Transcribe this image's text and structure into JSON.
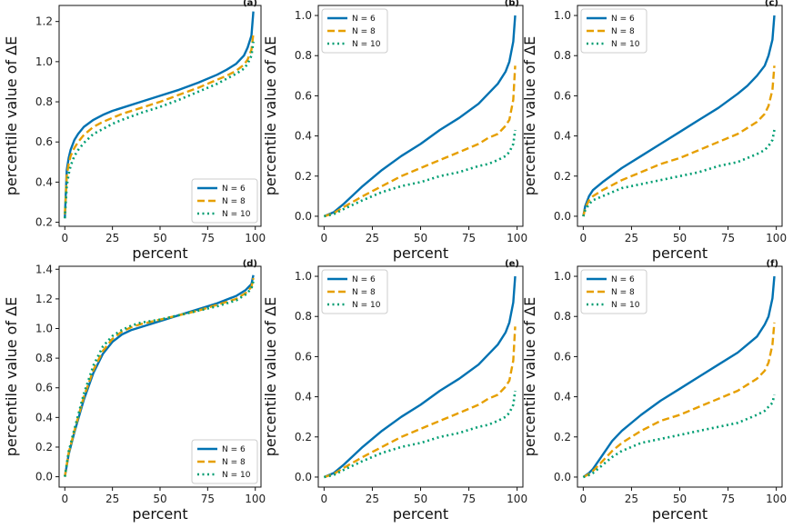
{
  "colors": {
    "N6": "#0072B2",
    "N8": "#E69F00",
    "N10": "#009E73"
  },
  "chart_data": [
    {
      "type": "line",
      "panel_label": "(a)",
      "xlabel": "percent",
      "ylabel": "percentile value of ΔE",
      "xlim": [
        -3,
        103
      ],
      "ylim": [
        0.18,
        1.28
      ],
      "xticks": [
        "0",
        "25",
        "50",
        "75",
        "100"
      ],
      "yticks": [
        "0.2",
        "0.4",
        "0.6",
        "0.8",
        "1.0",
        "1.2"
      ],
      "legend_position": "bottom-right",
      "series": [
        {
          "name": "N = 6",
          "x": [
            0,
            1,
            2,
            3,
            5,
            7,
            10,
            15,
            20,
            25,
            30,
            40,
            50,
            60,
            70,
            80,
            85,
            90,
            94,
            96,
            98,
            99
          ],
          "y": [
            0.22,
            0.46,
            0.52,
            0.56,
            0.61,
            0.64,
            0.675,
            0.71,
            0.735,
            0.755,
            0.77,
            0.8,
            0.83,
            0.86,
            0.895,
            0.935,
            0.96,
            0.99,
            1.03,
            1.07,
            1.13,
            1.25
          ]
        },
        {
          "name": "N = 8",
          "x": [
            0,
            1,
            2,
            3,
            5,
            7,
            10,
            15,
            20,
            25,
            30,
            40,
            50,
            60,
            70,
            80,
            85,
            90,
            94,
            96,
            98,
            99
          ],
          "y": [
            0.24,
            0.43,
            0.49,
            0.53,
            0.57,
            0.6,
            0.635,
            0.675,
            0.7,
            0.72,
            0.74,
            0.77,
            0.8,
            0.835,
            0.87,
            0.91,
            0.93,
            0.955,
            0.985,
            1.01,
            1.06,
            1.14
          ]
        },
        {
          "name": "N = 10",
          "x": [
            0,
            1,
            2,
            3,
            5,
            7,
            10,
            15,
            20,
            25,
            30,
            40,
            50,
            60,
            70,
            80,
            85,
            90,
            94,
            96,
            98,
            99
          ],
          "y": [
            0.22,
            0.38,
            0.44,
            0.48,
            0.53,
            0.56,
            0.595,
            0.64,
            0.665,
            0.69,
            0.71,
            0.745,
            0.775,
            0.81,
            0.85,
            0.89,
            0.915,
            0.94,
            0.965,
            0.99,
            1.03,
            1.1
          ]
        }
      ]
    },
    {
      "type": "line",
      "panel_label": "(b)",
      "xlabel": "percent",
      "ylabel": "percentile value of ΔE",
      "xlim": [
        -3,
        103
      ],
      "ylim": [
        -0.05,
        1.05
      ],
      "xticks": [
        "0",
        "25",
        "50",
        "75",
        "100"
      ],
      "yticks": [
        "0.0",
        "0.2",
        "0.4",
        "0.6",
        "0.8",
        "1.0"
      ],
      "legend_position": "top-left",
      "series": [
        {
          "name": "N = 6",
          "x": [
            0,
            5,
            10,
            20,
            30,
            40,
            50,
            60,
            70,
            80,
            85,
            90,
            94,
            96,
            98,
            99
          ],
          "y": [
            0.0,
            0.02,
            0.06,
            0.15,
            0.23,
            0.3,
            0.36,
            0.43,
            0.49,
            0.56,
            0.61,
            0.66,
            0.72,
            0.77,
            0.87,
            1.0
          ]
        },
        {
          "name": "N = 8",
          "x": [
            0,
            5,
            10,
            20,
            30,
            40,
            50,
            60,
            70,
            80,
            85,
            90,
            94,
            96,
            98,
            99
          ],
          "y": [
            0.0,
            0.015,
            0.045,
            0.1,
            0.15,
            0.2,
            0.24,
            0.28,
            0.32,
            0.36,
            0.39,
            0.41,
            0.45,
            0.48,
            0.58,
            0.75
          ]
        },
        {
          "name": "N = 10",
          "x": [
            0,
            5,
            10,
            20,
            30,
            40,
            50,
            60,
            70,
            80,
            85,
            90,
            94,
            96,
            98,
            99
          ],
          "y": [
            0.0,
            0.01,
            0.035,
            0.08,
            0.12,
            0.15,
            0.17,
            0.2,
            0.22,
            0.25,
            0.26,
            0.28,
            0.3,
            0.32,
            0.36,
            0.43
          ]
        }
      ]
    },
    {
      "type": "line",
      "panel_label": "(c)",
      "xlabel": "percent",
      "ylabel": "percentile value of ΔE",
      "xlim": [
        -3,
        103
      ],
      "ylim": [
        -0.05,
        1.05
      ],
      "xticks": [
        "0",
        "25",
        "50",
        "75",
        "100"
      ],
      "yticks": [
        "0.0",
        "0.2",
        "0.4",
        "0.6",
        "0.8",
        "1.0"
      ],
      "legend_position": "top-left",
      "series": [
        {
          "name": "N = 6",
          "x": [
            0,
            1,
            3,
            5,
            10,
            20,
            30,
            40,
            50,
            60,
            70,
            80,
            85,
            90,
            94,
            96,
            98,
            99
          ],
          "y": [
            0.0,
            0.05,
            0.1,
            0.13,
            0.17,
            0.24,
            0.3,
            0.36,
            0.42,
            0.48,
            0.54,
            0.61,
            0.65,
            0.7,
            0.75,
            0.8,
            0.88,
            1.0
          ]
        },
        {
          "name": "N = 8",
          "x": [
            0,
            1,
            3,
            5,
            10,
            20,
            30,
            40,
            50,
            60,
            70,
            80,
            85,
            90,
            94,
            96,
            98,
            99
          ],
          "y": [
            0.0,
            0.04,
            0.08,
            0.1,
            0.13,
            0.18,
            0.22,
            0.26,
            0.29,
            0.33,
            0.37,
            0.41,
            0.44,
            0.47,
            0.51,
            0.55,
            0.63,
            0.75
          ]
        },
        {
          "name": "N = 10",
          "x": [
            0,
            1,
            3,
            5,
            10,
            20,
            30,
            40,
            50,
            60,
            70,
            80,
            85,
            90,
            94,
            96,
            98,
            99
          ],
          "y": [
            0.0,
            0.03,
            0.06,
            0.08,
            0.1,
            0.14,
            0.16,
            0.18,
            0.2,
            0.22,
            0.25,
            0.27,
            0.29,
            0.31,
            0.33,
            0.35,
            0.38,
            0.43
          ]
        }
      ]
    },
    {
      "type": "line",
      "panel_label": "(d)",
      "xlabel": "percent",
      "ylabel": "percentile value of ΔE",
      "xlim": [
        -3,
        103
      ],
      "ylim": [
        -0.07,
        1.42
      ],
      "xticks": [
        "0",
        "25",
        "50",
        "75",
        "100"
      ],
      "yticks": [
        "0.0",
        "0.2",
        "0.4",
        "0.6",
        "0.8",
        "1.0",
        "1.2",
        "1.4"
      ],
      "legend_position": "bottom-right",
      "series": [
        {
          "name": "N = 6",
          "x": [
            0,
            2,
            5,
            10,
            15,
            20,
            25,
            30,
            35,
            40,
            50,
            60,
            70,
            80,
            90,
            95,
            98,
            99
          ],
          "y": [
            0.0,
            0.15,
            0.3,
            0.52,
            0.7,
            0.83,
            0.91,
            0.96,
            0.99,
            1.01,
            1.05,
            1.09,
            1.13,
            1.17,
            1.22,
            1.26,
            1.3,
            1.36
          ]
        },
        {
          "name": "N = 8",
          "x": [
            0,
            2,
            5,
            10,
            15,
            20,
            25,
            30,
            35,
            40,
            50,
            60,
            70,
            80,
            90,
            95,
            98,
            99
          ],
          "y": [
            0.0,
            0.16,
            0.31,
            0.54,
            0.72,
            0.85,
            0.93,
            0.98,
            1.01,
            1.03,
            1.06,
            1.09,
            1.12,
            1.16,
            1.2,
            1.24,
            1.28,
            1.34
          ]
        },
        {
          "name": "N = 10",
          "x": [
            0,
            2,
            5,
            10,
            15,
            20,
            25,
            30,
            35,
            40,
            50,
            60,
            70,
            80,
            90,
            95,
            98,
            99
          ],
          "y": [
            0.0,
            0.17,
            0.32,
            0.56,
            0.75,
            0.88,
            0.95,
            0.99,
            1.02,
            1.04,
            1.06,
            1.09,
            1.12,
            1.15,
            1.19,
            1.23,
            1.27,
            1.32
          ]
        }
      ]
    },
    {
      "type": "line",
      "panel_label": "(e)",
      "xlabel": "percent",
      "ylabel": "percentile value of ΔE",
      "xlim": [
        -3,
        103
      ],
      "ylim": [
        -0.05,
        1.05
      ],
      "xticks": [
        "0",
        "25",
        "50",
        "75",
        "100"
      ],
      "yticks": [
        "0.0",
        "0.2",
        "0.4",
        "0.6",
        "0.8",
        "1.0"
      ],
      "legend_position": "top-left",
      "series": [
        {
          "name": "N = 6",
          "x": [
            0,
            5,
            10,
            20,
            30,
            40,
            50,
            60,
            70,
            80,
            85,
            90,
            94,
            96,
            98,
            99
          ],
          "y": [
            0.0,
            0.02,
            0.06,
            0.15,
            0.23,
            0.3,
            0.36,
            0.43,
            0.49,
            0.56,
            0.61,
            0.66,
            0.72,
            0.77,
            0.87,
            1.0
          ]
        },
        {
          "name": "N = 8",
          "x": [
            0,
            5,
            10,
            20,
            30,
            40,
            50,
            60,
            70,
            80,
            85,
            90,
            94,
            96,
            98,
            99
          ],
          "y": [
            0.0,
            0.015,
            0.045,
            0.1,
            0.15,
            0.2,
            0.24,
            0.28,
            0.32,
            0.36,
            0.39,
            0.41,
            0.45,
            0.48,
            0.58,
            0.75
          ]
        },
        {
          "name": "N = 10",
          "x": [
            0,
            5,
            10,
            20,
            30,
            40,
            50,
            60,
            70,
            80,
            85,
            90,
            94,
            96,
            98,
            99
          ],
          "y": [
            0.0,
            0.01,
            0.035,
            0.08,
            0.12,
            0.15,
            0.17,
            0.2,
            0.22,
            0.25,
            0.26,
            0.28,
            0.3,
            0.32,
            0.36,
            0.43
          ]
        }
      ]
    },
    {
      "type": "line",
      "panel_label": "(f)",
      "xlabel": "percent",
      "ylabel": "percentile value of ΔE",
      "xlim": [
        -3,
        103
      ],
      "ylim": [
        -0.05,
        1.05
      ],
      "xticks": [
        "0",
        "25",
        "50",
        "75",
        "100"
      ],
      "yticks": [
        "0.0",
        "0.2",
        "0.4",
        "0.6",
        "0.8",
        "1.0"
      ],
      "legend_position": "top-left",
      "series": [
        {
          "name": "N = 6",
          "x": [
            0,
            3,
            5,
            10,
            15,
            20,
            30,
            40,
            50,
            60,
            70,
            80,
            85,
            90,
            94,
            96,
            98,
            99
          ],
          "y": [
            0.0,
            0.02,
            0.04,
            0.11,
            0.18,
            0.23,
            0.31,
            0.38,
            0.44,
            0.5,
            0.56,
            0.62,
            0.66,
            0.7,
            0.76,
            0.8,
            0.89,
            1.0
          ]
        },
        {
          "name": "N = 8",
          "x": [
            0,
            3,
            5,
            10,
            15,
            20,
            30,
            40,
            50,
            60,
            70,
            80,
            85,
            90,
            94,
            96,
            98,
            99
          ],
          "y": [
            0.0,
            0.015,
            0.03,
            0.08,
            0.13,
            0.17,
            0.23,
            0.28,
            0.31,
            0.35,
            0.39,
            0.43,
            0.46,
            0.49,
            0.53,
            0.57,
            0.66,
            0.77
          ]
        },
        {
          "name": "N = 10",
          "x": [
            0,
            3,
            5,
            10,
            15,
            20,
            30,
            40,
            50,
            60,
            70,
            80,
            85,
            90,
            94,
            96,
            98,
            99
          ],
          "y": [
            0.0,
            0.01,
            0.02,
            0.06,
            0.1,
            0.13,
            0.17,
            0.19,
            0.21,
            0.23,
            0.25,
            0.27,
            0.29,
            0.31,
            0.33,
            0.35,
            0.37,
            0.41
          ]
        }
      ]
    }
  ]
}
